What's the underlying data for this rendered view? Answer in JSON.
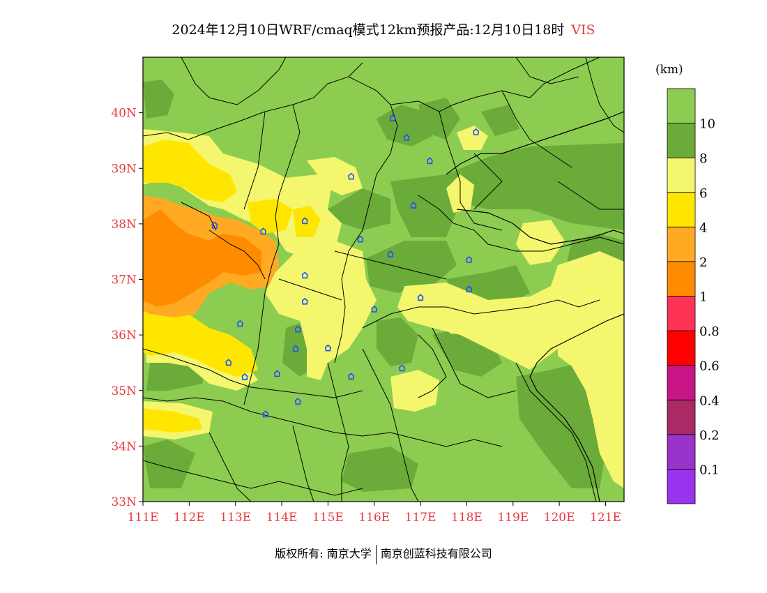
{
  "header": {
    "title": "2024年12月10日WRF/cmaq模式12km预报产品:12月10日18时",
    "variable": "VIS"
  },
  "map": {
    "lon_range": [
      111,
      121.4
    ],
    "lat_range": [
      33,
      41
    ],
    "lat_ticks": [
      {
        "value": 33,
        "label": "33N"
      },
      {
        "value": 34,
        "label": "34N"
      },
      {
        "value": 35,
        "label": "35N"
      },
      {
        "value": 36,
        "label": "36N"
      },
      {
        "value": 37,
        "label": "37N"
      },
      {
        "value": 38,
        "label": "38N"
      },
      {
        "value": 39,
        "label": "39N"
      },
      {
        "value": 40,
        "label": "40N"
      }
    ],
    "lon_ticks": [
      {
        "value": 111,
        "label": "111E"
      },
      {
        "value": 112,
        "label": "112E"
      },
      {
        "value": 113,
        "label": "113E"
      },
      {
        "value": 114,
        "label": "114E"
      },
      {
        "value": 115,
        "label": "115E"
      },
      {
        "value": 116,
        "label": "116E"
      },
      {
        "value": 117,
        "label": "117E"
      },
      {
        "value": 118,
        "label": "118E"
      },
      {
        "value": 119,
        "label": "119E"
      },
      {
        "value": 120,
        "label": "120E"
      },
      {
        "value": 121,
        "label": "121E"
      }
    ],
    "station_icon": "station-marker-icon",
    "stations": [
      {
        "lon": 116.4,
        "lat": 39.9
      },
      {
        "lon": 116.7,
        "lat": 39.55
      },
      {
        "lon": 118.2,
        "lat": 39.65
      },
      {
        "lon": 117.2,
        "lat": 39.13
      },
      {
        "lon": 115.5,
        "lat": 38.85
      },
      {
        "lon": 116.85,
        "lat": 38.33
      },
      {
        "lon": 112.55,
        "lat": 37.97
      },
      {
        "lon": 113.6,
        "lat": 37.86
      },
      {
        "lon": 114.5,
        "lat": 38.05
      },
      {
        "lon": 115.7,
        "lat": 37.72
      },
      {
        "lon": 116.35,
        "lat": 37.45
      },
      {
        "lon": 118.05,
        "lat": 37.35
      },
      {
        "lon": 114.5,
        "lat": 37.07
      },
      {
        "lon": 118.05,
        "lat": 36.82
      },
      {
        "lon": 117.0,
        "lat": 36.67
      },
      {
        "lon": 114.5,
        "lat": 36.6
      },
      {
        "lon": 116.0,
        "lat": 36.46
      },
      {
        "lon": 113.1,
        "lat": 36.2
      },
      {
        "lon": 114.35,
        "lat": 36.1
      },
      {
        "lon": 114.3,
        "lat": 35.75
      },
      {
        "lon": 115.0,
        "lat": 35.76
      },
      {
        "lon": 112.85,
        "lat": 35.5
      },
      {
        "lon": 116.6,
        "lat": 35.4
      },
      {
        "lon": 113.9,
        "lat": 35.3
      },
      {
        "lon": 113.2,
        "lat": 35.24
      },
      {
        "lon": 115.5,
        "lat": 35.25
      },
      {
        "lon": 114.35,
        "lat": 34.8
      },
      {
        "lon": 113.65,
        "lat": 34.57
      }
    ]
  },
  "colorbar": {
    "unit": "(km)",
    "colors": [
      "#9933ee",
      "#9933cc",
      "#aa2a66",
      "#c71585",
      "#ff0000",
      "#ff3355",
      "#ff8c00",
      "#ffaa22",
      "#ffe600",
      "#f4f66e",
      "#6bab3a",
      "#8ccc50"
    ],
    "labels": [
      "0.1",
      "0.2",
      "0.4",
      "0.6",
      "0.8",
      "1",
      "2",
      "4",
      "6",
      "8",
      "10"
    ]
  },
  "palette": {
    "green_light": "#8ccc50",
    "green_dark": "#6bab3a",
    "yellow_pale": "#f4f66e",
    "yellow": "#ffe600",
    "orange_light": "#ffaa22",
    "orange": "#ff8c00",
    "tick_color": "#e8383d",
    "station_color": "#1e50ff"
  },
  "footer": {
    "copyright_left": "版权所有: 南京大学",
    "copyright_right": "南京创蓝科技有限公司"
  }
}
